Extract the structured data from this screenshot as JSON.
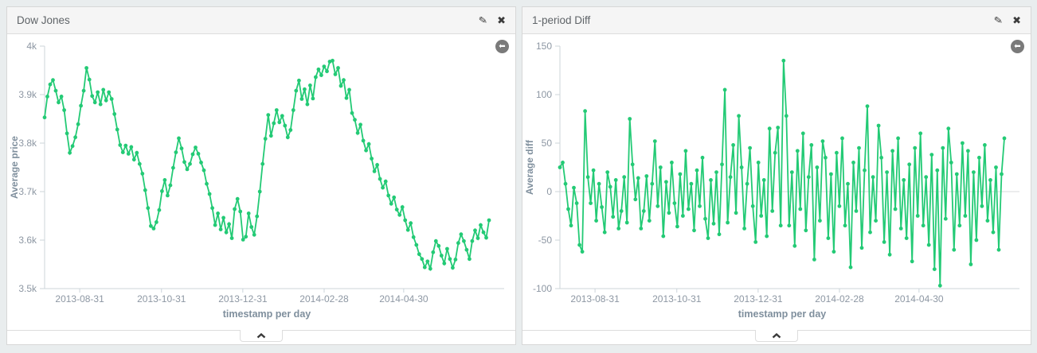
{
  "page": {
    "background": "#e9edee"
  },
  "icons": {
    "edit": "✎",
    "close": "✖",
    "back": "⬅"
  },
  "panels": [
    {
      "title": "Dow Jones"
    },
    {
      "title": "1-period Diff"
    }
  ],
  "chart_data": [
    {
      "type": "line",
      "title": "Dow Jones",
      "xlabel": "timestamp per day",
      "ylabel": "Average price",
      "ylim": [
        3500,
        4000
      ],
      "grid": false,
      "zero_gridline": false,
      "line_color": "#23ca75",
      "yticks": [
        {
          "label": "4k",
          "value": 4000
        },
        {
          "label": "3.9k",
          "value": 3900
        },
        {
          "label": "3.8k",
          "value": 3800
        },
        {
          "label": "3.7k",
          "value": 3700
        },
        {
          "label": "3.6k",
          "value": 3600
        },
        {
          "label": "3.5k",
          "value": 3500
        }
      ],
      "xticks": [
        {
          "label": "2013-08-31",
          "pos": 0.079
        },
        {
          "label": "2013-10-31",
          "pos": 0.263
        },
        {
          "label": "2013-12-31",
          "pos": 0.446
        },
        {
          "label": "2014-02-28",
          "pos": 0.629
        },
        {
          "label": "2014-04-30",
          "pos": 0.808
        }
      ],
      "values": [
        3853,
        3896,
        3921,
        3930,
        3908,
        3884,
        3896,
        3868,
        3820,
        3780,
        3794,
        3812,
        3839,
        3877,
        3908,
        3955,
        3931,
        3897,
        3884,
        3905,
        3880,
        3910,
        3888,
        3905,
        3891,
        3860,
        3828,
        3796,
        3781,
        3795,
        3778,
        3792,
        3766,
        3780,
        3757,
        3737,
        3703,
        3666,
        3629,
        3624,
        3637,
        3662,
        3701,
        3724,
        3692,
        3713,
        3749,
        3781,
        3810,
        3789,
        3761,
        3746,
        3757,
        3777,
        3791,
        3778,
        3760,
        3744,
        3716,
        3695,
        3666,
        3631,
        3655,
        3622,
        3646,
        3616,
        3633,
        3604,
        3664,
        3685,
        3659,
        3601,
        3607,
        3655,
        3627,
        3611,
        3649,
        3700,
        3757,
        3809,
        3858,
        3815,
        3841,
        3868,
        3843,
        3856,
        3836,
        3812,
        3827,
        3868,
        3908,
        3929,
        3891,
        3911,
        3880,
        3919,
        3892,
        3936,
        3952,
        3940,
        3958,
        3948,
        3968,
        3970,
        3942,
        3955,
        3918,
        3930,
        3893,
        3910,
        3862,
        3848,
        3821,
        3838,
        3805,
        3785,
        3798,
        3768,
        3742,
        3755,
        3726,
        3708,
        3721,
        3692,
        3675,
        3688,
        3663,
        3652,
        3668,
        3641,
        3621,
        3635,
        3606,
        3590,
        3571,
        3561,
        3544,
        3556,
        3541,
        3575,
        3598,
        3588,
        3568,
        3552,
        3582,
        3561,
        3543,
        3560,
        3594,
        3612,
        3598,
        3580,
        3561,
        3598,
        3620,
        3604,
        3631,
        3616,
        3605,
        3641
      ]
    },
    {
      "type": "line",
      "title": "1-period Diff",
      "xlabel": "timestamp per day",
      "ylabel": "Average diff",
      "ylim": [
        -100,
        150
      ],
      "grid": false,
      "zero_gridline": true,
      "line_color": "#23ca75",
      "yticks": [
        {
          "label": "150",
          "value": 150
        },
        {
          "label": "100",
          "value": 100
        },
        {
          "label": "50",
          "value": 50
        },
        {
          "label": "0",
          "value": 0
        },
        {
          "label": "-50",
          "value": -50
        },
        {
          "label": "-100",
          "value": -100
        }
      ],
      "xticks": [
        {
          "label": "2013-08-31",
          "pos": 0.079
        },
        {
          "label": "2013-10-31",
          "pos": 0.263
        },
        {
          "label": "2013-12-31",
          "pos": 0.446
        },
        {
          "label": "2014-02-28",
          "pos": 0.629
        },
        {
          "label": "2014-04-30",
          "pos": 0.808
        }
      ],
      "values": [
        25,
        30,
        8,
        -18,
        -35,
        4,
        -12,
        -55,
        -62,
        83,
        15,
        -12,
        22,
        -30,
        8,
        -16,
        -42,
        20,
        5,
        -26,
        12,
        -38,
        -20,
        15,
        -32,
        75,
        28,
        -8,
        14,
        -38,
        -20,
        16,
        -30,
        8,
        52,
        -15,
        25,
        -46,
        10,
        -22,
        30,
        -12,
        -36,
        18,
        -25,
        42,
        -18,
        8,
        -40,
        22,
        -15,
        35,
        -28,
        -48,
        12,
        -33,
        20,
        -44,
        28,
        105,
        -32,
        15,
        48,
        -22,
        78,
        25,
        -38,
        8,
        45,
        -15,
        -52,
        30,
        -25,
        12,
        -46,
        65,
        -20,
        40,
        66,
        -35,
        135,
        78,
        -35,
        20,
        -56,
        42,
        -18,
        60,
        -40,
        15,
        48,
        -70,
        25,
        -30,
        52,
        35,
        -48,
        18,
        -62,
        40,
        -15,
        55,
        -35,
        8,
        -78,
        30,
        -20,
        45,
        -58,
        22,
        88,
        -42,
        15,
        -30,
        68,
        35,
        -52,
        20,
        -65,
        42,
        -18,
        55,
        -38,
        12,
        -48,
        28,
        -72,
        45,
        -25,
        60,
        -35,
        15,
        -55,
        38,
        -80,
        22,
        -97,
        45,
        -28,
        65,
        30,
        -60,
        18,
        -35,
        50,
        -25,
        42,
        -75,
        20,
        -50,
        35,
        -15,
        48,
        -30,
        12,
        -42,
        25,
        -60,
        18,
        55
      ]
    }
  ]
}
